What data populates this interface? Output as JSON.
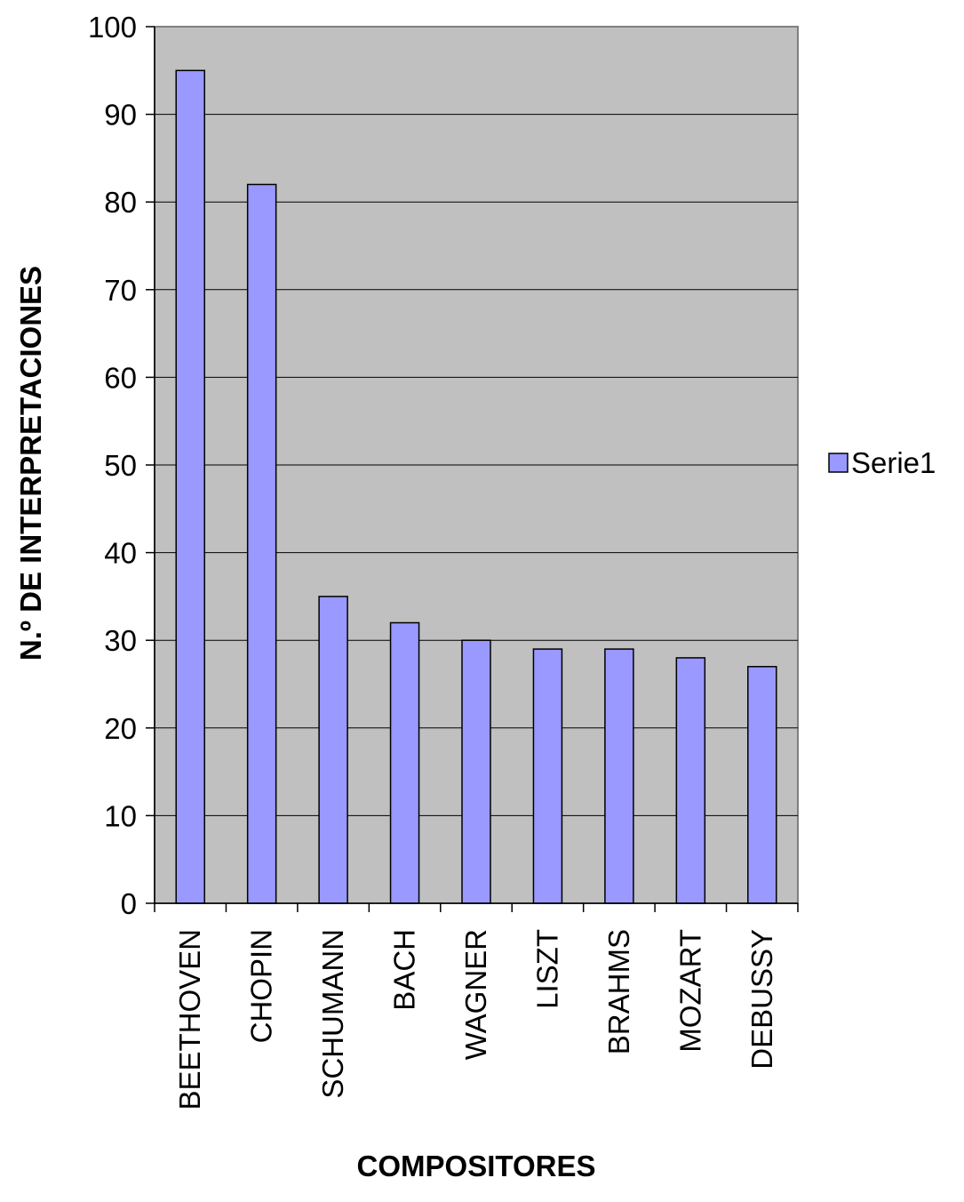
{
  "chart_data": {
    "type": "bar",
    "categories": [
      "BEETHOVEN",
      "CHOPIN",
      "SCHUMANN",
      "BACH",
      "WAGNER",
      "LISZT",
      "BRAHMS",
      "MOZART",
      "DEBUSSY"
    ],
    "series": [
      {
        "name": "Serie1",
        "values": [
          95,
          82,
          35,
          32,
          30,
          29,
          29,
          28,
          27
        ]
      }
    ],
    "xlabel": "COMPOSITORES",
    "ylabel": "N.º DE INTERPRETACIONES",
    "ylim": [
      0,
      100
    ],
    "yticks": [
      0,
      10,
      20,
      30,
      40,
      50,
      60,
      70,
      80,
      90,
      100
    ],
    "grid": true,
    "legend": "right",
    "colors": {
      "bar_fill": "#9999ff",
      "plot_background": "#c0c0c0",
      "gridline": "#000000"
    }
  }
}
